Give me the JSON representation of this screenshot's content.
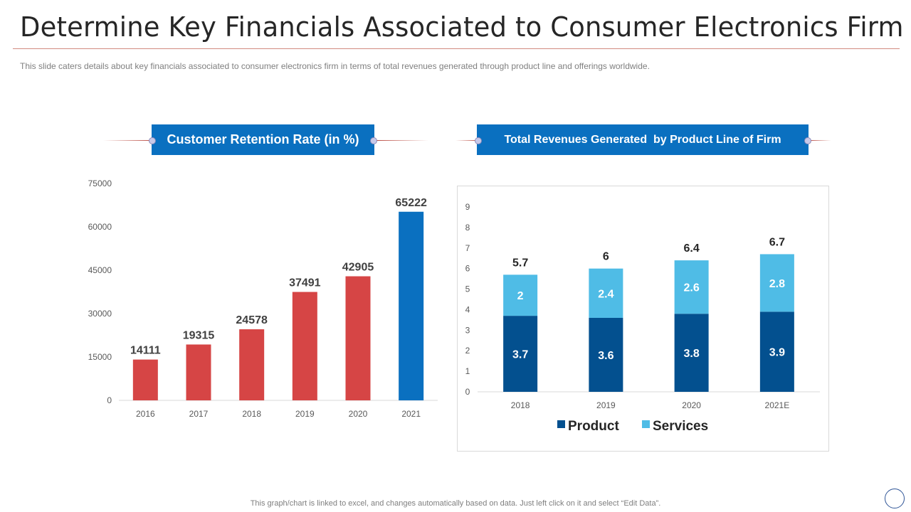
{
  "header": {
    "title": "Determine Key Financials Associated to Consumer Electronics Firm",
    "subtitle": "This slide caters details about key financials associated to consumer electronics firm in terms of total revenues  generated through  product line and offerings  worldwide."
  },
  "colors": {
    "red_bar": "#d64545",
    "blue_bar": "#0a70c0",
    "product": "#03508f",
    "services": "#4fbce6",
    "banner": "#0a70c0"
  },
  "footer": {
    "note": "This graph/chart is linked to excel,  and changes automatically based on data. Just left click on it and select “Edit Data”."
  },
  "chart_data": [
    {
      "type": "bar",
      "title": "Customer Retention Rate (in %)",
      "categories": [
        "2016",
        "2017",
        "2018",
        "2019",
        "2020",
        "2021"
      ],
      "values": [
        14111,
        19315,
        24578,
        37491,
        42905,
        65222
      ],
      "highlight_index": 5,
      "xlabel": "",
      "ylabel": "",
      "ylim": [
        0,
        75000
      ],
      "yticks": [
        0,
        15000,
        30000,
        45000,
        60000,
        75000
      ],
      "grid": false,
      "legend": "none"
    },
    {
      "type": "bar",
      "stacked": true,
      "title": "Total Revenues Generated  by Product Line of Firm",
      "categories": [
        "2018",
        "2019",
        "2020",
        "2021E"
      ],
      "series": [
        {
          "name": "Product",
          "values": [
            3.7,
            3.6,
            3.8,
            3.9
          ]
        },
        {
          "name": "Services",
          "values": [
            2,
            2.4,
            2.6,
            2.8
          ]
        }
      ],
      "totals": [
        "5.7",
        "6",
        "6.4",
        "6.7"
      ],
      "xlabel": "",
      "ylabel": "",
      "ylim": [
        0,
        9
      ],
      "yticks": [
        0,
        1,
        2,
        3,
        4,
        5,
        6,
        7,
        8,
        9
      ],
      "grid": false,
      "legend": "bottom"
    }
  ]
}
